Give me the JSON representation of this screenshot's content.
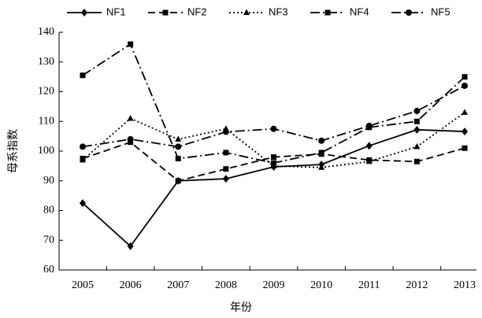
{
  "chart_data": {
    "type": "line",
    "x_label": "年份",
    "y_label": "母系指数",
    "categories": [
      "2005",
      "2006",
      "2007",
      "2008",
      "2009",
      "2010",
      "2011",
      "2012",
      "2013"
    ],
    "ylim": [
      60,
      140
    ],
    "yticks": [
      60,
      70,
      80,
      90,
      100,
      110,
      120,
      130,
      140
    ],
    "legend": "top",
    "series": [
      {
        "name": "NF1",
        "color": "#000000",
        "dash": "solid",
        "marker": "diamond",
        "values": [
          82.5,
          68,
          90,
          90.7,
          94.7,
          95.5,
          101.8,
          107.2,
          106.6
        ]
      },
      {
        "name": "NF2",
        "color": "#000000",
        "dash": "dashed",
        "marker": "square",
        "values": [
          97.5,
          103,
          90,
          94,
          98,
          99,
          97,
          96.5,
          101
        ]
      },
      {
        "name": "NF3",
        "color": "#000000",
        "dash": "dotted",
        "marker": "triangle",
        "values": [
          97,
          111,
          104,
          107.5,
          95,
          94.5,
          96.5,
          101.5,
          113
        ]
      },
      {
        "name": "NF4",
        "color": "#000000",
        "dash": "dashdot",
        "marker": "square",
        "values": [
          125.5,
          136,
          97.5,
          99.5,
          96,
          99.5,
          108,
          110,
          125
        ]
      },
      {
        "name": "NF5",
        "color": "#000000",
        "dash": "dashdot",
        "marker": "circle",
        "values": [
          101.5,
          104,
          101.5,
          106.5,
          107.5,
          103.5,
          108.5,
          113.5,
          122
        ]
      }
    ]
  }
}
